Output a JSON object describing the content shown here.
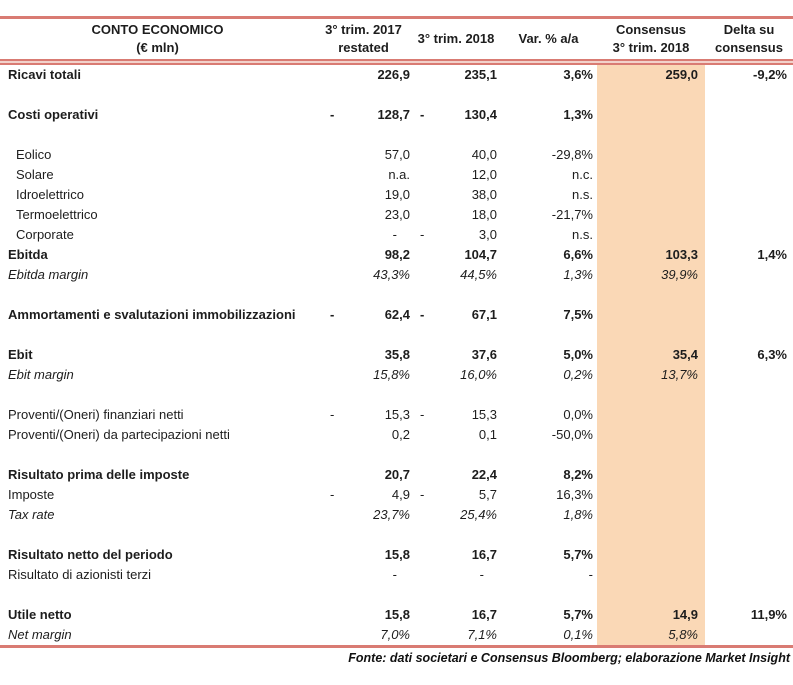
{
  "table": {
    "header": {
      "label_line1": "CONTO ECONOMICO",
      "label_line2": "(€ mln)",
      "col2017_line1": "3° trim. 2017",
      "col2017_line2": "restated",
      "col2018": "3° trim. 2018",
      "colvar": "Var. % a/a",
      "cons_line1": "Consensus",
      "cons_line2": "3° trim. 2018",
      "delta_line1": "Delta su",
      "delta_line2": "consensus"
    },
    "rows": [
      {
        "label": "Ricavi totali",
        "style": "bold",
        "m17": "",
        "v17": "226,9",
        "m18": "",
        "v18": "235,1",
        "var": "3,6%",
        "cons": "259,0",
        "delta": "-9,2%"
      },
      {
        "spacer": true
      },
      {
        "label": "Costi operativi",
        "style": "bold",
        "m17": "-",
        "v17": "128,7",
        "m18": "-",
        "v18": "130,4",
        "var": "1,3%",
        "cons": "",
        "delta": ""
      },
      {
        "spacer": true
      },
      {
        "label": "Eolico",
        "style": "indent",
        "m17": "",
        "v17": "57,0",
        "m18": "",
        "v18": "40,0",
        "var": "-29,8%",
        "cons": "",
        "delta": ""
      },
      {
        "label": "Solare",
        "style": "indent",
        "m17": "",
        "v17": "n.a.",
        "m18": "",
        "v18": "12,0",
        "var": "n.c.",
        "cons": "",
        "delta": ""
      },
      {
        "label": "Idroelettrico",
        "style": "indent",
        "m17": "",
        "v17": "19,0",
        "m18": "",
        "v18": "38,0",
        "var": "n.s.",
        "cons": "",
        "delta": ""
      },
      {
        "label": "Termoelettrico",
        "style": "indent",
        "m17": "",
        "v17": "23,0",
        "m18": "",
        "v18": "18,0",
        "var": "-21,7%",
        "cons": "",
        "delta": ""
      },
      {
        "label": "Corporate",
        "style": "indent",
        "m17": "",
        "v17": "-",
        "m18": "-",
        "v18": "3,0",
        "var": "n.s.",
        "cons": "",
        "delta": ""
      },
      {
        "label": "Ebitda",
        "style": "bold",
        "m17": "",
        "v17": "98,2",
        "m18": "",
        "v18": "104,7",
        "var": "6,6%",
        "cons": "103,3",
        "delta": "1,4%"
      },
      {
        "label": "Ebitda margin",
        "style": "italic",
        "m17": "",
        "v17": "43,3%",
        "m18": "",
        "v18": "44,5%",
        "var": "1,3%",
        "cons": "39,9%",
        "delta": ""
      },
      {
        "spacer": true
      },
      {
        "label": "Ammortamenti e svalutazioni immobilizzazioni",
        "style": "bold",
        "m17": "-",
        "v17": "62,4",
        "m18": "-",
        "v18": "67,1",
        "var": "7,5%",
        "cons": "",
        "delta": ""
      },
      {
        "spacer": true
      },
      {
        "label": "Ebit",
        "style": "bold",
        "m17": "",
        "v17": "35,8",
        "m18": "",
        "v18": "37,6",
        "var": "5,0%",
        "cons": "35,4",
        "delta": "6,3%"
      },
      {
        "label": "Ebit margin",
        "style": "italic",
        "m17": "",
        "v17": "15,8%",
        "m18": "",
        "v18": "16,0%",
        "var": "0,2%",
        "cons": "13,7%",
        "delta": ""
      },
      {
        "spacer": true
      },
      {
        "label": "Proventi/(Oneri) finanziari netti",
        "style": "normal",
        "m17": "-",
        "v17": "15,3",
        "m18": "-",
        "v18": "15,3",
        "var": "0,0%",
        "cons": "",
        "delta": ""
      },
      {
        "label": "Proventi/(Oneri) da partecipazioni netti",
        "style": "normal",
        "m17": "",
        "v17": "0,2",
        "m18": "",
        "v18": "0,1",
        "var": "-50,0%",
        "cons": "",
        "delta": ""
      },
      {
        "spacer": true
      },
      {
        "label": "Risultato prima delle imposte",
        "style": "bold",
        "m17": "",
        "v17": "20,7",
        "m18": "",
        "v18": "22,4",
        "var": "8,2%",
        "cons": "",
        "delta": ""
      },
      {
        "label": "Imposte",
        "style": "normal",
        "m17": "-",
        "v17": "4,9",
        "m18": "-",
        "v18": "5,7",
        "var": "16,3%",
        "cons": "",
        "delta": ""
      },
      {
        "label": "Tax rate",
        "style": "italic",
        "m17": "",
        "v17": "23,7%",
        "m18": "",
        "v18": "25,4%",
        "var": "1,8%",
        "cons": "",
        "delta": ""
      },
      {
        "spacer": true
      },
      {
        "label": "Risultato netto del periodo",
        "style": "bold",
        "m17": "",
        "v17": "15,8",
        "m18": "",
        "v18": "16,7",
        "var": "5,7%",
        "cons": "",
        "delta": ""
      },
      {
        "label": "Risultato di azionisti terzi",
        "style": "normal",
        "m17": "",
        "v17": "-",
        "m18": "",
        "v18": "-",
        "var": "-",
        "cons": "",
        "delta": ""
      },
      {
        "spacer": true
      },
      {
        "label": "Utile netto",
        "style": "bold",
        "m17": "",
        "v17": "15,8",
        "m18": "",
        "v18": "16,7",
        "var": "5,7%",
        "cons": "14,9",
        "delta": "11,9%"
      },
      {
        "label": "Net margin",
        "style": "italic",
        "m17": "",
        "v17": "7,0%",
        "m18": "",
        "v18": "7,1%",
        "var": "0,1%",
        "cons": "5,8%",
        "delta": ""
      }
    ],
    "footer": "Fonte: dati societari e Consensus Bloomberg; elaborazione Market Insight"
  },
  "colors": {
    "accent_line": "#d97b73",
    "accent_line_light": "#f2d2cb",
    "consensus_fill": "#fad8b6",
    "text": "#1d1d1d"
  }
}
